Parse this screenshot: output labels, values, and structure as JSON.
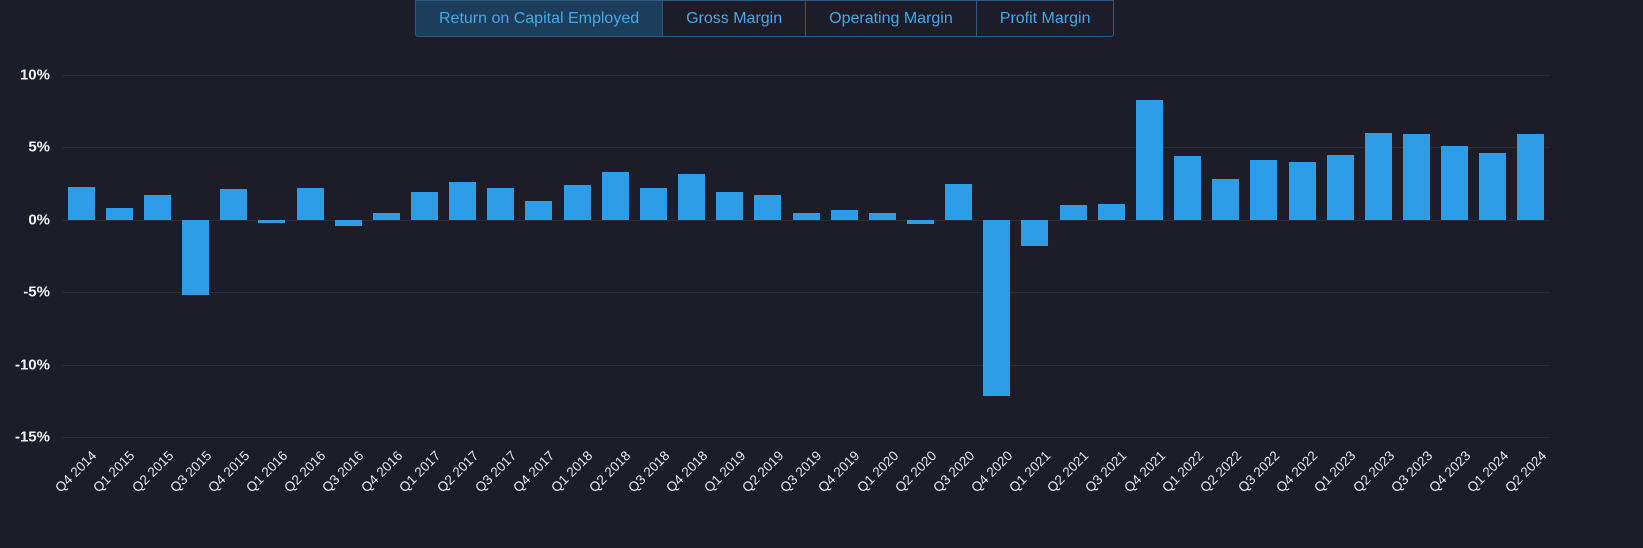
{
  "tabs": [
    {
      "label": "Return on Capital Employed",
      "active": true
    },
    {
      "label": "Gross Margin",
      "active": false
    },
    {
      "label": "Operating Margin",
      "active": false
    },
    {
      "label": "Profit Margin",
      "active": false
    }
  ],
  "colors": {
    "background": "#1d1d29",
    "bar": "#2d9de8",
    "grid": "#2b2b39",
    "axis_text": "#f2f2f6",
    "x_axis_text": "#e9e9f0",
    "tab_border": "#2c5a84",
    "tab_text": "#41a9ec",
    "tab_active_bg": "#1c3e5a"
  },
  "chart_data": {
    "type": "bar",
    "title": "",
    "xlabel": "",
    "ylabel": "",
    "grid": true,
    "legend": "none",
    "ylim": [
      -15,
      10
    ],
    "yticks": [
      {
        "value": 10,
        "label": "10%"
      },
      {
        "value": 5,
        "label": "5%"
      },
      {
        "value": 0,
        "label": "0%"
      },
      {
        "value": -5,
        "label": "-5%"
      },
      {
        "value": -10,
        "label": "-10%"
      },
      {
        "value": -15,
        "label": "-15%"
      }
    ],
    "categories": [
      "Q4 2014",
      "Q1 2015",
      "Q2 2015",
      "Q3 2015",
      "Q4 2015",
      "Q1 2016",
      "Q2 2016",
      "Q3 2016",
      "Q4 2016",
      "Q1 2017",
      "Q2 2017",
      "Q3 2017",
      "Q4 2017",
      "Q1 2018",
      "Q2 2018",
      "Q3 2018",
      "Q4 2018",
      "Q1 2019",
      "Q2 2019",
      "Q3 2019",
      "Q4 2019",
      "Q1 2020",
      "Q2 2020",
      "Q3 2020",
      "Q4 2020",
      "Q1 2021",
      "Q2 2021",
      "Q3 2021",
      "Q4 2021",
      "Q1 2022",
      "Q2 2022",
      "Q3 2022",
      "Q4 2022",
      "Q1 2023",
      "Q2 2023",
      "Q3 2023",
      "Q4 2023",
      "Q1 2024",
      "Q2 2024"
    ],
    "series": [
      {
        "name": "Return on Capital Employed",
        "values": [
          2.3,
          0.8,
          1.7,
          -5.2,
          2.1,
          -0.2,
          2.2,
          -0.4,
          0.5,
          1.9,
          2.6,
          2.2,
          1.3,
          2.4,
          3.3,
          2.2,
          3.2,
          1.9,
          1.7,
          0.5,
          0.7,
          0.5,
          -0.3,
          2.5,
          -12.2,
          -1.8,
          1.0,
          1.1,
          8.3,
          4.4,
          2.8,
          4.1,
          4.0,
          4.5,
          6.0,
          5.9,
          5.1,
          4.6,
          5.9
        ]
      }
    ]
  }
}
